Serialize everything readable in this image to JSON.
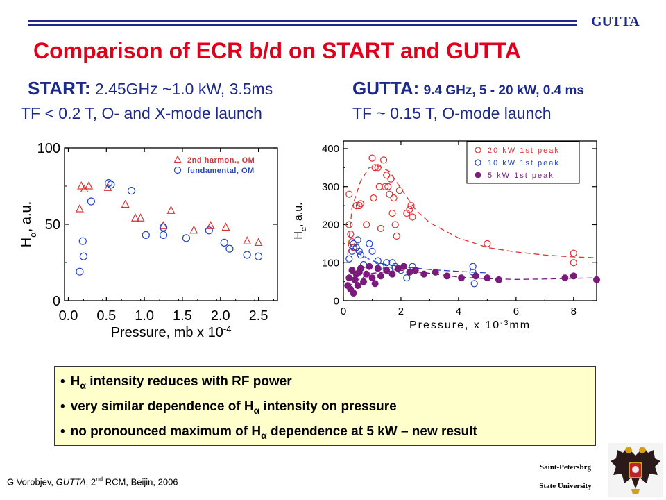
{
  "header": {
    "brand": "GUTTA"
  },
  "title": "Comparison of ECR b/d on START and GUTTA",
  "start": {
    "label": "START:",
    "params": "2.45GHz ~1.0 kW, 3.5ms",
    "line2": "TF < 0.2 T, O- and X-mode launch"
  },
  "gutta": {
    "label": "GUTTA:",
    "params": "9.4 GHz, 5 - 20 kW, 0.4 ms",
    "line2": "TF ~ 0.15 T, O-mode launch"
  },
  "chart_data": [
    {
      "type": "scatter",
      "xlabel": "Pressure, mb x 10",
      "xlabel_exp": "-4",
      "ylabel": "H",
      "ylabel_sub": "α",
      "ylabel_suffix": ", a.u.",
      "xlim": [
        -0.05,
        2.75
      ],
      "ylim": [
        0,
        100
      ],
      "xticks": [
        0.0,
        0.5,
        1.0,
        1.5,
        2.0,
        2.5
      ],
      "xtick_labels": [
        "0.0",
        "0.5",
        "1.0",
        "1.5",
        "2.0",
        "2.5"
      ],
      "yticks": [
        0,
        50,
        100
      ],
      "ytick_labels": [
        "0",
        "50",
        "100"
      ],
      "legend_position": "top-right",
      "series": [
        {
          "name": "2nd harmon., OM",
          "marker": "triangle",
          "color": "#e03030",
          "x": [
            0.15,
            0.17,
            0.21,
            0.27,
            0.52,
            0.75,
            0.88,
            0.95,
            1.25,
            1.35,
            1.65,
            1.87,
            2.07,
            2.35,
            2.5
          ],
          "y": [
            60,
            75,
            73,
            75,
            74,
            63,
            54,
            54,
            49,
            59,
            46,
            49,
            48,
            39,
            38
          ]
        },
        {
          "name": "fundamental, OM",
          "marker": "circle",
          "color": "#2244cc",
          "x": [
            0.15,
            0.2,
            0.19,
            0.3,
            0.53,
            0.56,
            0.83,
            1.02,
            1.25,
            1.25,
            1.55,
            1.85,
            2.05,
            2.12,
            2.35,
            2.5
          ],
          "y": [
            19,
            29,
            39,
            65,
            77,
            76,
            72,
            43,
            43,
            48,
            41,
            46,
            38,
            34,
            30,
            29
          ]
        }
      ]
    },
    {
      "type": "scatter",
      "xlabel": "Pressure, x 10",
      "xlabel_exp": "-3",
      "xlabel_suffix": "mm",
      "ylabel": "H",
      "ylabel_sub": "α",
      "ylabel_suffix": ", a.u.",
      "xlim": [
        0,
        8.8
      ],
      "ylim": [
        0,
        420
      ],
      "xticks": [
        0,
        2,
        4,
        6,
        8
      ],
      "xtick_labels": [
        "0",
        "2",
        "4",
        "6",
        "8"
      ],
      "yticks": [
        0,
        100,
        200,
        300,
        400
      ],
      "ytick_labels": [
        "0",
        "100",
        "200",
        "300",
        "400"
      ],
      "legend_position": "top-right",
      "series": [
        {
          "name": "20 kW 1st peak",
          "marker": "circle",
          "color": "#e03030",
          "x": [
            0.2,
            0.2,
            0.25,
            0.3,
            0.35,
            0.45,
            0.55,
            0.6,
            0.8,
            1.0,
            1.05,
            1.1,
            1.2,
            1.25,
            1.3,
            1.4,
            1.45,
            1.5,
            1.55,
            1.6,
            1.65,
            1.7,
            1.75,
            1.8,
            1.85,
            1.95,
            2.2,
            2.3,
            2.35,
            2.4,
            5.0,
            8.0,
            8.0
          ],
          "y": [
            280,
            200,
            175,
            155,
            140,
            250,
            250,
            255,
            200,
            375,
            270,
            350,
            350,
            300,
            190,
            370,
            300,
            330,
            300,
            280,
            320,
            230,
            270,
            200,
            170,
            290,
            230,
            240,
            250,
            220,
            150,
            125,
            100
          ],
          "trend_x": [
            0.15,
            0.3,
            0.6,
            0.9,
            1.2,
            1.6,
            2.0,
            2.5,
            3.0,
            4.0,
            5.0,
            6.0,
            7.0,
            8.0,
            8.8
          ],
          "trend_y": [
            120,
            245,
            315,
            350,
            355,
            340,
            295,
            240,
            205,
            165,
            140,
            128,
            120,
            115,
            113
          ]
        },
        {
          "name": "10 kW 1st peak",
          "marker": "circle",
          "color": "#2244cc",
          "x": [
            0.2,
            0.3,
            0.35,
            0.45,
            0.5,
            0.55,
            0.6,
            0.7,
            0.9,
            1.0,
            1.2,
            1.3,
            1.5,
            1.6,
            1.7,
            1.8,
            2.0,
            2.2,
            2.4,
            4.5,
            4.5,
            4.55
          ],
          "y": [
            110,
            130,
            150,
            140,
            160,
            130,
            120,
            95,
            150,
            130,
            105,
            90,
            100,
            80,
            100,
            90,
            80,
            60,
            90,
            90,
            75,
            45
          ],
          "trend_x": [
            0.2,
            0.5,
            1.0,
            1.5,
            2.0,
            3.0,
            4.0,
            5.0
          ],
          "trend_y": [
            140,
            125,
            105,
            95,
            90,
            82,
            77,
            73
          ]
        },
        {
          "name": "5 kW 1st peak",
          "marker": "filled-circle",
          "color": "#7a1a7a",
          "x": [
            0.15,
            0.2,
            0.25,
            0.3,
            0.35,
            0.4,
            0.45,
            0.5,
            0.55,
            0.6,
            0.7,
            0.8,
            0.9,
            1.0,
            1.1,
            1.2,
            1.3,
            1.5,
            1.7,
            1.9,
            2.1,
            2.3,
            2.5,
            2.8,
            3.2,
            3.6,
            4.1,
            4.6,
            5.0,
            5.4,
            7.7,
            8.0,
            8.8
          ],
          "y": [
            40,
            60,
            30,
            80,
            20,
            55,
            70,
            40,
            75,
            85,
            50,
            70,
            90,
            60,
            45,
            85,
            65,
            80,
            70,
            85,
            90,
            75,
            80,
            70,
            75,
            65,
            60,
            65,
            60,
            55,
            60,
            65,
            55
          ],
          "trend_x": [
            0.15,
            0.5,
            1.0,
            2.0,
            3.0,
            4.0,
            5.0,
            6.0,
            7.0,
            8.0,
            8.8
          ],
          "trend_y": [
            35,
            55,
            72,
            80,
            72,
            62,
            58,
            56,
            57,
            59,
            60
          ]
        }
      ]
    }
  ],
  "notes": [
    {
      "prefix": "H",
      "sub": "α",
      "text": " intensity reduces with RF power"
    },
    {
      "prefix": "very similar dependence of H",
      "sub": "α",
      "text": " intensity on pressure"
    },
    {
      "prefix": "no pronounced maximum of H",
      "sub": "α",
      "text": " dependence at 5 kW – new result"
    }
  ],
  "footer": {
    "author": "G Vorobjev, ",
    "project": "GUTTA",
    "ordinal_pre": ", 2",
    "ordinal_sup": "nd",
    "event": " RCM, Beijin, 2006",
    "institution_line1": "Saint-Petersbrg",
    "institution_line2": "State University"
  },
  "logo": {
    "icon": "double-headed-eagle-emblem-icon"
  }
}
